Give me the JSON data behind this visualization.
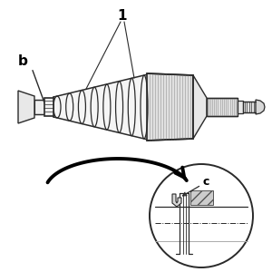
{
  "bg_color": "#ffffff",
  "lc": "#2a2a2a",
  "lg": "#999999",
  "dg": "#555555",
  "label_b": "b",
  "label_1": "1",
  "label_c": "c",
  "fig_width": 3.0,
  "fig_height": 3.0,
  "dpi": 100
}
